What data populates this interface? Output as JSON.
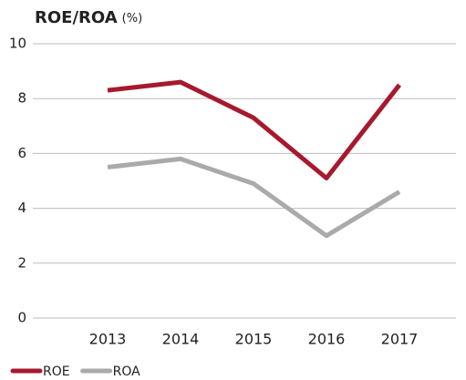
{
  "chart_data": {
    "type": "line",
    "title": "ROE/ROA",
    "unit": "(%)",
    "categories": [
      "2013",
      "2014",
      "2015",
      "2016",
      "2017"
    ],
    "series": [
      {
        "name": "ROE",
        "color": "#a6192e",
        "values": [
          8.3,
          8.6,
          7.3,
          5.1,
          8.5
        ]
      },
      {
        "name": "ROA",
        "color": "#aaaaaa",
        "values": [
          5.5,
          5.8,
          4.9,
          3.0,
          4.6
        ]
      }
    ],
    "ylim": [
      0,
      10
    ],
    "yticks": [
      0,
      2,
      4,
      6,
      8,
      10
    ],
    "grid": true,
    "legend": "bottom-left"
  }
}
